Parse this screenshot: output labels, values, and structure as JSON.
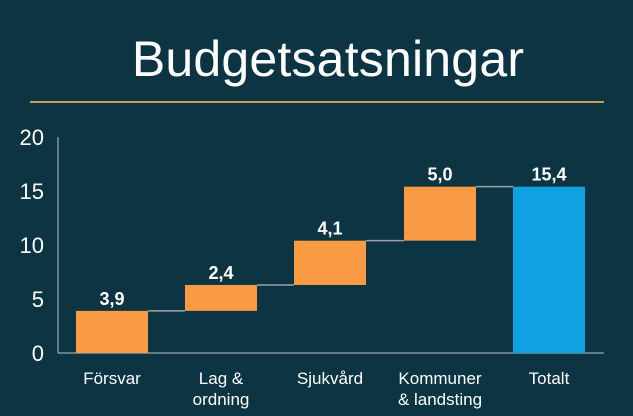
{
  "chart_data": {
    "type": "bar",
    "subtype": "waterfall",
    "title": "Budgetsatsningar",
    "xlabel": "",
    "ylabel": "",
    "ylim": [
      0,
      20
    ],
    "yticks": [
      "0",
      "5",
      "10",
      "15",
      "20"
    ],
    "categories": [
      [
        "Försvar"
      ],
      [
        "Lag &",
        "ordning"
      ],
      [
        "Sjukvård"
      ],
      [
        "Kommuner",
        "& landsting"
      ],
      [
        "Totalt"
      ]
    ],
    "values": [
      3.9,
      2.4,
      4.1,
      5.0,
      15.4
    ],
    "data_labels": [
      "3,9",
      "2,4",
      "4,1",
      "5,0",
      "15,4"
    ],
    "bases": [
      0,
      3.9,
      6.3,
      10.4,
      0
    ],
    "legend": "none",
    "grid": false
  },
  "colors": {
    "background": "#0c3443",
    "increment": "#f99a44",
    "total": "#10a2e0",
    "rule": "#c8a04c",
    "axis": "#b7c2c7",
    "connector": "#9aa4a8",
    "text": "#ffffff"
  }
}
